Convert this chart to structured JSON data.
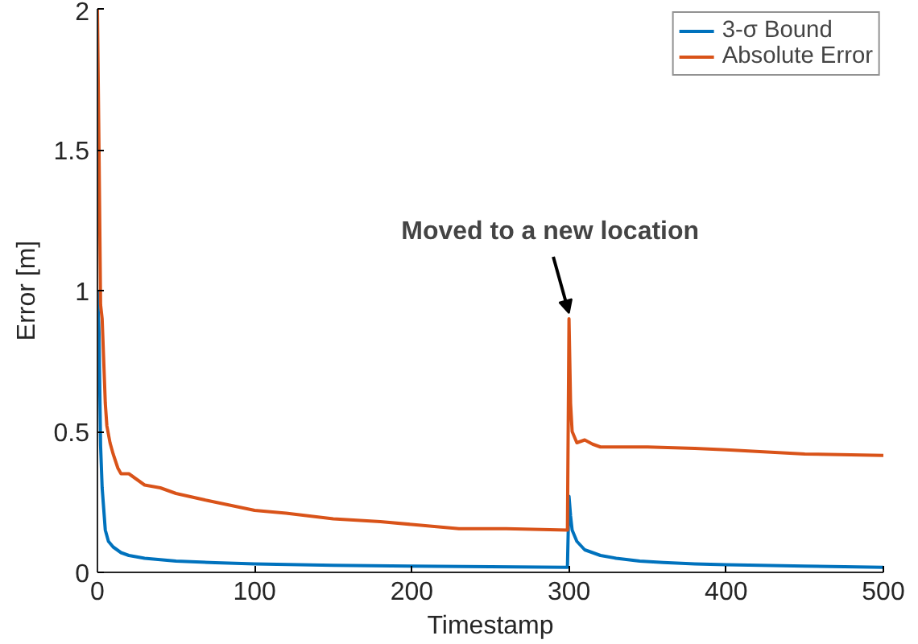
{
  "chart_data": {
    "type": "line",
    "xlabel": "Timestamp",
    "ylabel": "Error [m]",
    "xlim": [
      0,
      500
    ],
    "ylim": [
      0,
      2
    ],
    "xticks": [
      0,
      100,
      200,
      300,
      400,
      500
    ],
    "yticks": [
      0,
      0.5,
      1,
      1.5,
      2
    ],
    "grid": false,
    "legend": "top right",
    "marker": "none",
    "line_style": "solid",
    "annotations": [
      {
        "text": "Moved to a new location",
        "x": 300,
        "y": 0.9
      }
    ],
    "series": [
      {
        "name": "3-σ Bound",
        "color": "#0072bd",
        "x": [
          0,
          1,
          2,
          3,
          5,
          7,
          10,
          15,
          20,
          30,
          50,
          75,
          100,
          150,
          200,
          250,
          299,
          300,
          301,
          302,
          305,
          310,
          320,
          330,
          345,
          360,
          380,
          400,
          450,
          500
        ],
        "values": [
          1.0,
          0.85,
          0.45,
          0.3,
          0.15,
          0.11,
          0.09,
          0.07,
          0.06,
          0.05,
          0.04,
          0.034,
          0.03,
          0.025,
          0.022,
          0.02,
          0.018,
          0.27,
          0.2,
          0.15,
          0.11,
          0.08,
          0.06,
          0.05,
          0.04,
          0.035,
          0.03,
          0.027,
          0.022,
          0.018
        ]
      },
      {
        "name": "Absolute Error",
        "color": "#d95319",
        "x": [
          0,
          1,
          2,
          3,
          4,
          5,
          6,
          8,
          10,
          13,
          15,
          20,
          25,
          30,
          40,
          50,
          70,
          100,
          120,
          150,
          180,
          200,
          230,
          260,
          299,
          300,
          301,
          302,
          305,
          310,
          315,
          320,
          330,
          350,
          380,
          400,
          450,
          500
        ],
        "values": [
          2.0,
          1.5,
          0.95,
          0.9,
          0.75,
          0.6,
          0.52,
          0.46,
          0.42,
          0.37,
          0.35,
          0.35,
          0.33,
          0.31,
          0.3,
          0.28,
          0.255,
          0.22,
          0.21,
          0.19,
          0.18,
          0.17,
          0.155,
          0.155,
          0.15,
          0.9,
          0.6,
          0.5,
          0.46,
          0.47,
          0.455,
          0.445,
          0.445,
          0.445,
          0.44,
          0.435,
          0.42,
          0.415
        ]
      }
    ]
  }
}
